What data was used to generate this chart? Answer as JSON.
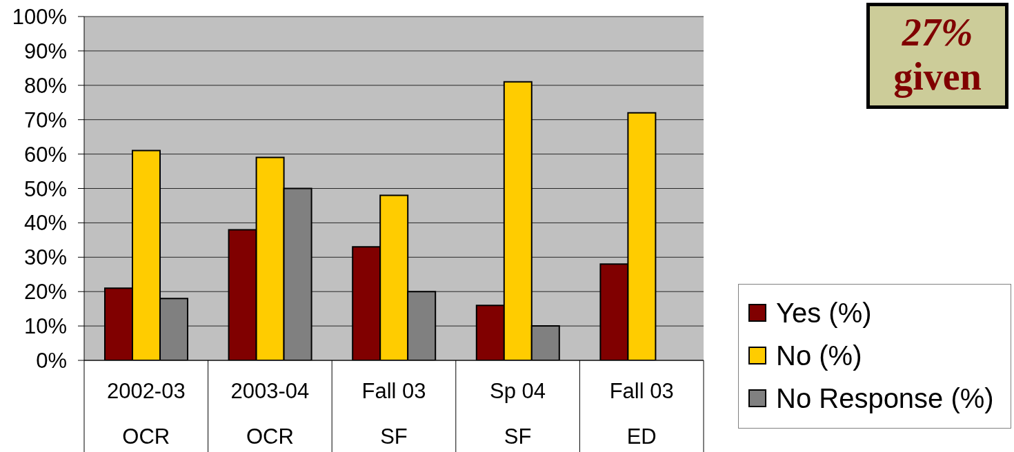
{
  "chart_data": {
    "type": "bar",
    "categories": [
      "2002-03\nOCR",
      "2003-04\nOCR",
      "Fall 03\nSF",
      "Sp 04\nSF",
      "Fall 03\nED"
    ],
    "series": [
      {
        "name": "Yes (%)",
        "color": "#800000",
        "values": [
          21,
          38,
          33,
          16,
          28
        ]
      },
      {
        "name": "No (%)",
        "color": "#ffcc00",
        "values": [
          61,
          59,
          48,
          81,
          72
        ]
      },
      {
        "name": "No Response (%)",
        "color": "#808080",
        "values": [
          18,
          50,
          20,
          10,
          null
        ]
      }
    ],
    "ylim": [
      0,
      100
    ],
    "yticks": [
      {
        "value": 0,
        "label": "0%"
      },
      {
        "value": 10,
        "label": "10%"
      },
      {
        "value": 20,
        "label": "20%"
      },
      {
        "value": 30,
        "label": "30%"
      },
      {
        "value": 40,
        "label": "40%"
      },
      {
        "value": 50,
        "label": "50%"
      },
      {
        "value": 60,
        "label": "60%"
      },
      {
        "value": 70,
        "label": "70%"
      },
      {
        "value": 80,
        "label": "80%"
      },
      {
        "value": 90,
        "label": "90%"
      },
      {
        "value": 100,
        "label": "100%"
      }
    ],
    "grid": "y",
    "legend": "right",
    "annotations": [
      "27%\ngiven"
    ]
  }
}
